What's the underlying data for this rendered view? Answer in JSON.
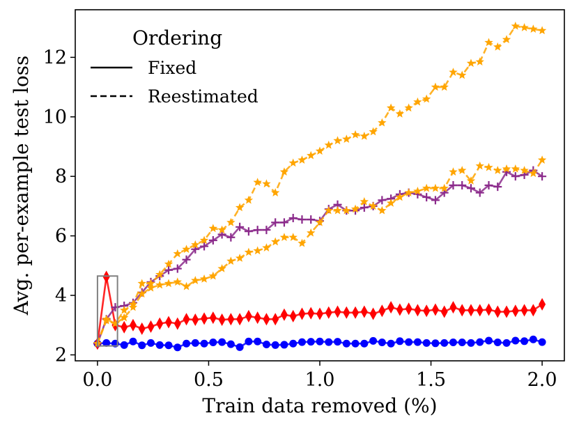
{
  "chart_data": {
    "type": "line",
    "title": "",
    "xlabel": "Train data removed (%)",
    "ylabel": "Avg. per-example test loss",
    "xlim": [
      -0.1,
      2.1
    ],
    "ylim": [
      1.8,
      13.6
    ],
    "xticks": [
      0.0,
      0.5,
      1.0,
      1.5,
      2.0
    ],
    "xtick_labels": [
      "0.0",
      "0.5",
      "1.0",
      "1.5",
      "2.0"
    ],
    "yticks": [
      2,
      4,
      6,
      8,
      10,
      12
    ],
    "ytick_labels": [
      "2",
      "4",
      "6",
      "8",
      "10",
      "12"
    ],
    "grid": false,
    "legend": {
      "title": "Ordering",
      "placement": "top-left",
      "entries": [
        {
          "label": "Fixed",
          "style": "solid"
        },
        {
          "label": "Reestimated",
          "style": "dashed"
        }
      ]
    },
    "highlight_box": {
      "x_range": [
        0.0,
        0.09
      ],
      "y_range": [
        2.3,
        4.65
      ]
    },
    "series": [
      {
        "name": "blue-fixed",
        "color": "#0000ff",
        "marker": "circle",
        "style": "solid",
        "x": [
          0.0,
          0.04,
          0.08,
          0.12,
          0.16,
          0.2,
          0.24,
          0.28,
          0.32,
          0.36,
          0.4,
          0.44,
          0.48,
          0.52,
          0.56,
          0.6,
          0.64,
          0.68,
          0.72,
          0.76,
          0.8,
          0.84,
          0.88,
          0.92,
          0.96,
          1.0,
          1.04,
          1.08,
          1.12,
          1.16,
          1.2,
          1.24,
          1.28,
          1.32,
          1.36,
          1.4,
          1.44,
          1.48,
          1.52,
          1.56,
          1.6,
          1.64,
          1.68,
          1.72,
          1.76,
          1.8,
          1.84,
          1.88,
          1.92,
          1.96,
          2.0
        ],
        "values": [
          2.38,
          2.4,
          2.38,
          2.33,
          2.45,
          2.32,
          2.4,
          2.33,
          2.32,
          2.25,
          2.38,
          2.4,
          2.38,
          2.42,
          2.43,
          2.36,
          2.26,
          2.45,
          2.45,
          2.35,
          2.33,
          2.34,
          2.38,
          2.43,
          2.44,
          2.45,
          2.43,
          2.44,
          2.38,
          2.38,
          2.38,
          2.47,
          2.42,
          2.38,
          2.46,
          2.43,
          2.43,
          2.4,
          2.39,
          2.4,
          2.42,
          2.42,
          2.4,
          2.43,
          2.48,
          2.42,
          2.4,
          2.48,
          2.46,
          2.52,
          2.43
        ]
      },
      {
        "name": "red-fixed",
        "color": "#ff0000",
        "marker": "diamond",
        "style": "solid",
        "x": [
          0.0,
          0.04,
          0.08,
          0.12,
          0.16,
          0.2,
          0.24,
          0.28,
          0.32,
          0.36,
          0.4,
          0.44,
          0.48,
          0.52,
          0.56,
          0.6,
          0.64,
          0.68,
          0.72,
          0.76,
          0.8,
          0.84,
          0.88,
          0.92,
          0.96,
          1.0,
          1.04,
          1.08,
          1.12,
          1.16,
          1.2,
          1.24,
          1.28,
          1.32,
          1.36,
          1.4,
          1.44,
          1.48,
          1.52,
          1.56,
          1.6,
          1.64,
          1.68,
          1.72,
          1.76,
          1.8,
          1.84,
          1.88,
          1.92,
          1.96,
          2.0
        ],
        "values": [
          2.38,
          4.62,
          3.0,
          2.93,
          3.0,
          2.88,
          2.95,
          3.05,
          3.1,
          3.05,
          3.2,
          3.18,
          3.22,
          3.25,
          3.18,
          3.2,
          3.2,
          3.3,
          3.25,
          3.2,
          3.2,
          3.35,
          3.3,
          3.38,
          3.4,
          3.38,
          3.42,
          3.45,
          3.42,
          3.42,
          3.45,
          3.38,
          3.48,
          3.6,
          3.52,
          3.55,
          3.5,
          3.48,
          3.52,
          3.45,
          3.6,
          3.5,
          3.5,
          3.5,
          3.52,
          3.45,
          3.45,
          3.48,
          3.5,
          3.5,
          3.7
        ]
      },
      {
        "name": "purple-fixed",
        "color": "#8b2a8b",
        "marker": "plus",
        "style": "solid",
        "x": [
          0.0,
          0.04,
          0.08,
          0.12,
          0.16,
          0.2,
          0.24,
          0.28,
          0.32,
          0.36,
          0.4,
          0.44,
          0.48,
          0.52,
          0.56,
          0.6,
          0.64,
          0.68,
          0.72,
          0.76,
          0.8,
          0.84,
          0.88,
          0.92,
          0.96,
          1.0,
          1.04,
          1.08,
          1.12,
          1.16,
          1.2,
          1.24,
          1.28,
          1.32,
          1.36,
          1.4,
          1.44,
          1.48,
          1.52,
          1.56,
          1.6,
          1.64,
          1.68,
          1.72,
          1.76,
          1.8,
          1.84,
          1.88,
          1.92,
          1.96,
          2.0
        ],
        "values": [
          2.38,
          3.2,
          3.6,
          3.65,
          3.75,
          4.1,
          4.45,
          4.65,
          4.85,
          4.9,
          5.2,
          5.55,
          5.65,
          5.85,
          6.05,
          5.95,
          6.3,
          6.15,
          6.2,
          6.2,
          6.45,
          6.45,
          6.6,
          6.55,
          6.55,
          6.5,
          6.9,
          7.05,
          6.85,
          6.85,
          6.95,
          7.0,
          7.2,
          7.25,
          7.4,
          7.45,
          7.4,
          7.3,
          7.2,
          7.45,
          7.7,
          7.7,
          7.6,
          7.45,
          7.7,
          7.65,
          8.15,
          8.0,
          8.05,
          8.2,
          8.0
        ]
      },
      {
        "name": "orange-lower",
        "color": "#ffa500",
        "marker": "star",
        "style": "dashed",
        "x": [
          0.0,
          0.04,
          0.08,
          0.12,
          0.16,
          0.2,
          0.24,
          0.28,
          0.32,
          0.36,
          0.4,
          0.44,
          0.48,
          0.52,
          0.56,
          0.6,
          0.64,
          0.68,
          0.72,
          0.76,
          0.8,
          0.84,
          0.88,
          0.92,
          0.96,
          1.0,
          1.04,
          1.08,
          1.12,
          1.16,
          1.2,
          1.24,
          1.28,
          1.32,
          1.36,
          1.4,
          1.44,
          1.48,
          1.52,
          1.56,
          1.6,
          1.64,
          1.68,
          1.72,
          1.76,
          1.8,
          1.84,
          1.88,
          1.92,
          1.96,
          2.0
        ],
        "values": [
          2.38,
          3.2,
          3.05,
          3.25,
          3.6,
          4.05,
          4.25,
          4.35,
          4.4,
          4.45,
          4.3,
          4.5,
          4.55,
          4.65,
          4.9,
          5.15,
          5.25,
          5.45,
          5.5,
          5.6,
          5.8,
          5.95,
          5.95,
          5.75,
          6.1,
          6.45,
          6.85,
          6.85,
          6.85,
          6.9,
          7.15,
          7.0,
          6.85,
          7.1,
          7.3,
          7.45,
          7.5,
          7.6,
          7.6,
          7.6,
          8.15,
          8.2,
          7.85,
          8.35,
          8.3,
          8.2,
          8.25,
          8.25,
          8.2,
          8.1,
          8.55
        ]
      },
      {
        "name": "orange-upper",
        "color": "#ffa500",
        "marker": "star",
        "style": "dashed",
        "x": [
          0.0,
          0.04,
          0.08,
          0.12,
          0.16,
          0.2,
          0.24,
          0.28,
          0.32,
          0.36,
          0.4,
          0.44,
          0.48,
          0.52,
          0.56,
          0.6,
          0.64,
          0.68,
          0.72,
          0.76,
          0.8,
          0.84,
          0.88,
          0.92,
          0.96,
          1.0,
          1.04,
          1.08,
          1.12,
          1.16,
          1.2,
          1.24,
          1.28,
          1.32,
          1.36,
          1.4,
          1.44,
          1.48,
          1.52,
          1.56,
          1.6,
          1.64,
          1.68,
          1.72,
          1.76,
          1.8,
          1.84,
          1.88,
          1.92,
          1.96,
          2.0
        ],
        "values": [
          2.38,
          3.15,
          3.05,
          3.5,
          3.7,
          4.4,
          4.4,
          4.7,
          5.05,
          5.4,
          5.55,
          5.7,
          5.85,
          6.25,
          6.2,
          6.45,
          6.95,
          7.2,
          7.8,
          7.75,
          7.45,
          8.15,
          8.45,
          8.55,
          8.7,
          8.85,
          9.05,
          9.2,
          9.25,
          9.4,
          9.35,
          9.5,
          9.8,
          10.3,
          10.1,
          10.3,
          10.5,
          10.6,
          11.0,
          11.0,
          11.5,
          11.4,
          11.8,
          11.85,
          12.5,
          12.35,
          12.6,
          13.05,
          13.0,
          12.95,
          12.9
        ]
      }
    ]
  }
}
